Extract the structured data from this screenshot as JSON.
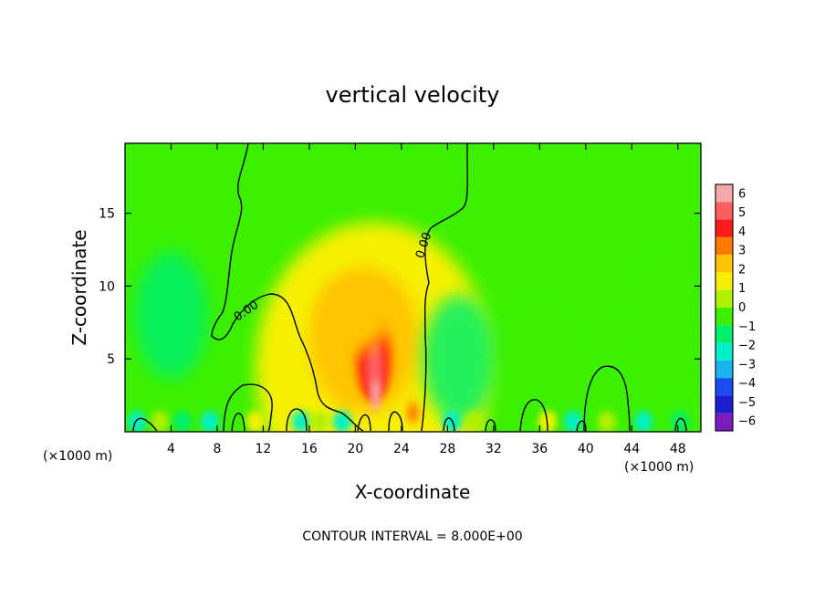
{
  "chart_data": {
    "type": "heatmap",
    "title": "vertical velocity",
    "xlabel": "X-coordinate",
    "ylabel": "Z-coordinate",
    "x_unit": "(×1000 m)",
    "x_unit_right": "(×1000 m)",
    "footer": "CONTOUR INTERVAL = 8.000E+00",
    "xlim": [
      0,
      50
    ],
    "ylim": [
      0,
      19.8
    ],
    "xticks": [
      4,
      8,
      12,
      16,
      20,
      24,
      28,
      32,
      36,
      40,
      44,
      48
    ],
    "yticks": [
      5,
      10,
      15
    ],
    "colorbar": {
      "levels": [
        6,
        5,
        4,
        3,
        2,
        1,
        0,
        -1,
        -2,
        -3,
        -4,
        -5,
        -6
      ],
      "colors": [
        "#f4a8a8",
        "#ff5f5f",
        "#ff1a1a",
        "#ff7a00",
        "#ffc400",
        "#f5f000",
        "#b0f000",
        "#3bf000",
        "#00f06a",
        "#00f0c8",
        "#18b4f0",
        "#1c4cf0",
        "#1c1cd0",
        "#7a1cc0"
      ]
    },
    "contours": [
      {
        "label": "0.00",
        "label_x": 10.7,
        "label_y": 8.0
      },
      {
        "label": "0.00",
        "label_x": 26.6,
        "label_y": 12.8
      }
    ],
    "features": [
      {
        "kind": "updraft_max",
        "x": 21.6,
        "y": 5.0,
        "w": 6
      },
      {
        "kind": "updraft_secondary",
        "x": 25.0,
        "y": 1.4,
        "w": 3
      },
      {
        "kind": "updraft_core",
        "x": 20.0,
        "y": 8.0,
        "w": 2
      },
      {
        "kind": "downdraft",
        "x": 4.0,
        "y": 8.0,
        "w": -1.5
      },
      {
        "kind": "downdraft",
        "x": 29.0,
        "y": 5.0,
        "w": -1.5
      },
      {
        "kind": "downdraft",
        "x": 36.0,
        "y": 4.0,
        "w": -1
      },
      {
        "kind": "downdraft",
        "x": 48.0,
        "y": 8.0,
        "w": -1
      }
    ]
  }
}
